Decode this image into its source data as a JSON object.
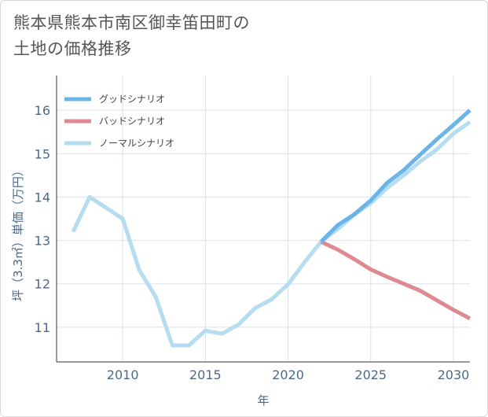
{
  "title": {
    "line1": "熊本県熊本市南区御幸笛田町の",
    "line2": "土地の価格推移"
  },
  "chart_data": {
    "type": "line",
    "xlabel": "年",
    "ylabel": "坪（3.3㎡）単価（万円）",
    "xlim": [
      2006,
      2031
    ],
    "ylim": [
      10.2,
      16.8
    ],
    "x_ticks": [
      2010,
      2015,
      2020,
      2025,
      2030
    ],
    "y_ticks": [
      11,
      12,
      13,
      14,
      15,
      16
    ],
    "grid": true,
    "legend_position": "top-left",
    "series": [
      {
        "name": "グッドシナリオ",
        "color": "#6ab4e8",
        "x": [
          2022,
          2023,
          2024,
          2025,
          2026,
          2027,
          2028,
          2029,
          2030,
          2031
        ],
        "values": [
          12.97,
          13.35,
          13.6,
          13.92,
          14.33,
          14.62,
          14.98,
          15.33,
          15.66,
          16.0
        ]
      },
      {
        "name": "バッドシナリオ",
        "color": "#df8a92",
        "x": [
          2022,
          2023,
          2024,
          2025,
          2026,
          2027,
          2028,
          2029,
          2030,
          2031
        ],
        "values": [
          12.97,
          12.79,
          12.57,
          12.33,
          12.16,
          12.0,
          11.84,
          11.62,
          11.4,
          11.2
        ]
      },
      {
        "name": "ノーマルシナリオ",
        "color": "#b5dcef",
        "x": [
          2007,
          2008,
          2009,
          2010,
          2011,
          2012,
          2013,
          2014,
          2015,
          2016,
          2017,
          2018,
          2019,
          2020,
          2021,
          2022,
          2023,
          2024,
          2025,
          2026,
          2027,
          2028,
          2029,
          2030,
          2031
        ],
        "values": [
          13.2,
          14.0,
          13.75,
          13.5,
          12.32,
          11.7,
          10.58,
          10.58,
          10.92,
          10.85,
          11.06,
          11.44,
          11.64,
          11.99,
          12.5,
          12.97,
          13.26,
          13.59,
          13.86,
          14.21,
          14.5,
          14.82,
          15.1,
          15.46,
          15.73
        ]
      }
    ]
  }
}
